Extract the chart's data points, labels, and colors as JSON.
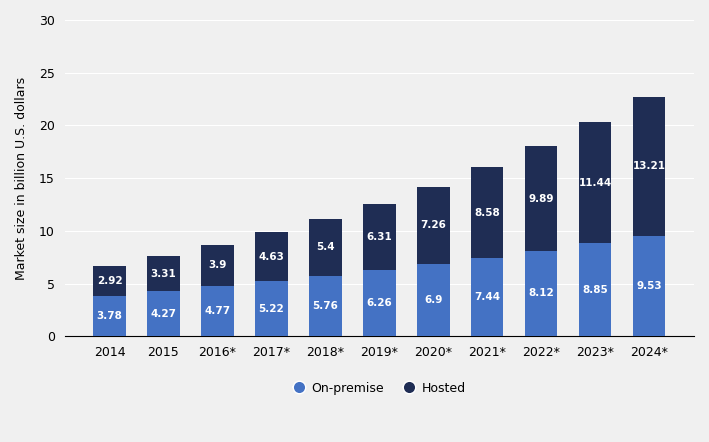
{
  "categories": [
    "2014",
    "2015",
    "2016*",
    "2017*",
    "2018*",
    "2019*",
    "2020*",
    "2021*",
    "2022*",
    "2023*",
    "2024*"
  ],
  "on_premise": [
    3.78,
    4.27,
    4.77,
    5.22,
    5.76,
    6.26,
    6.9,
    7.44,
    8.12,
    8.85,
    9.53
  ],
  "hosted": [
    2.92,
    3.31,
    3.9,
    4.63,
    5.4,
    6.31,
    7.26,
    8.58,
    9.89,
    11.44,
    13.21
  ],
  "on_premise_color": "#4472C4",
  "hosted_color": "#1F2D54",
  "bg_color": "#f0f0f0",
  "plot_bg_color": "#f0f0f0",
  "ylabel": "Market size in billion U.S. dollars",
  "ylim": [
    0,
    30
  ],
  "yticks": [
    0,
    5,
    10,
    15,
    20,
    25,
    30
  ],
  "legend_on_premise": "On-premise",
  "legend_hosted": "Hosted",
  "bar_width": 0.6,
  "font_size_labels": 7.5,
  "font_size_axis": 9
}
